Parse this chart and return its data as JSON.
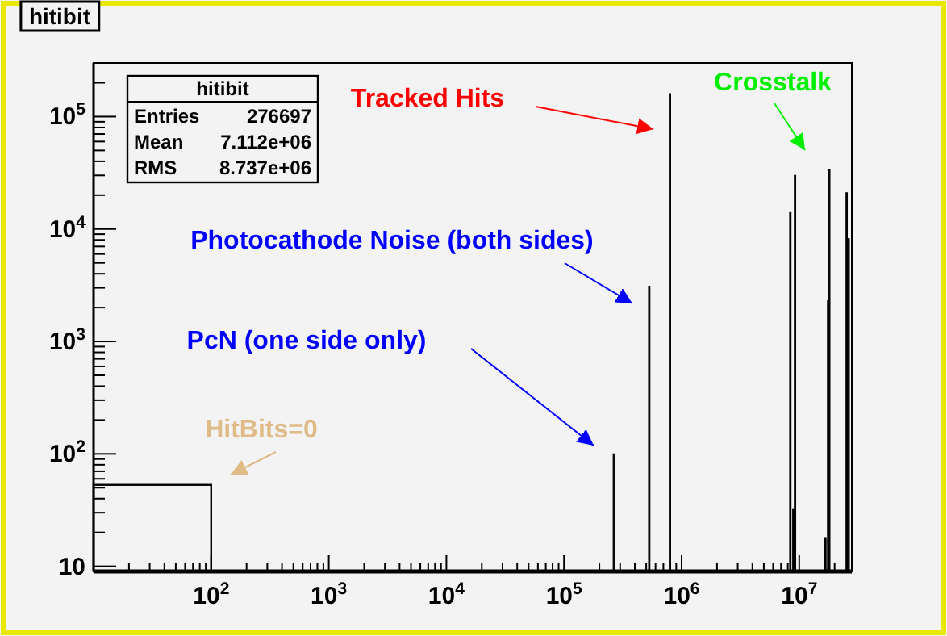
{
  "chart_data": {
    "type": "histogram",
    "title": "hitibit",
    "bins": [
      10,
      100,
      262000,
      267000,
      524000,
      534000,
      786000,
      802000,
      8300000,
      8450000,
      8800000,
      8950000,
      9100000,
      9250000,
      16500000,
      16800000,
      17400000,
      17700000,
      17800000,
      18100000,
      25000000,
      25400000,
      26000000,
      26400000
    ],
    "values": [
      53,
      null,
      100,
      null,
      3100,
      null,
      160000,
      null,
      14000,
      null,
      32,
      null,
      30000,
      null,
      18,
      null,
      2300,
      null,
      34000,
      null,
      21000,
      null,
      8200
    ],
    "color": "#000000",
    "log": "xy",
    "xlim": [
      10,
      28000000
    ],
    "ylim": [
      9,
      300000
    ],
    "xticks": [
      {
        "value": 20,
        "label": null
      },
      {
        "value": 30,
        "label": null
      },
      {
        "value": 40,
        "label": null
      },
      {
        "value": 50,
        "label": null
      },
      {
        "value": 60,
        "label": null
      },
      {
        "value": 70,
        "label": null
      },
      {
        "value": 80,
        "label": null
      },
      {
        "value": 90,
        "label": null
      },
      {
        "value": 100,
        "label": "10$^{2}$"
      },
      {
        "value": 200,
        "label": null
      },
      {
        "value": 300,
        "label": null
      },
      {
        "value": 400,
        "label": null
      },
      {
        "value": 500,
        "label": null
      },
      {
        "value": 600,
        "label": null
      },
      {
        "value": 700,
        "label": null
      },
      {
        "value": 800,
        "label": null
      },
      {
        "value": 900,
        "label": null
      },
      {
        "value": 1000,
        "label": "10$^{3}$"
      },
      {
        "value": 2000,
        "label": null
      },
      {
        "value": 3000,
        "label": null
      },
      {
        "value": 4000,
        "label": null
      },
      {
        "value": 5000,
        "label": null
      },
      {
        "value": 6000,
        "label": null
      },
      {
        "value": 7000,
        "label": null
      },
      {
        "value": 8000,
        "label": null
      },
      {
        "value": 9000,
        "label": null
      },
      {
        "value": 10000,
        "label": "10$^{4}$"
      },
      {
        "value": 20000,
        "label": null
      },
      {
        "value": 30000,
        "label": null
      },
      {
        "value": 40000,
        "label": null
      },
      {
        "value": 50000,
        "label": null
      },
      {
        "value": 60000,
        "label": null
      },
      {
        "value": 70000,
        "label": null
      },
      {
        "value": 80000,
        "label": null
      },
      {
        "value": 90000,
        "label": null
      },
      {
        "value": 100000,
        "label": "10$^{5}$"
      },
      {
        "value": 200000,
        "label": null
      },
      {
        "value": 300000,
        "label": null
      },
      {
        "value": 400000,
        "label": null
      },
      {
        "value": 500000,
        "label": null
      },
      {
        "value": 600000,
        "label": null
      },
      {
        "value": 700000,
        "label": null
      },
      {
        "value": 800000,
        "label": null
      },
      {
        "value": 900000,
        "label": null
      },
      {
        "value": 1000000,
        "label": "10$^{6}$"
      },
      {
        "value": 2000000,
        "label": null
      },
      {
        "value": 3000000,
        "label": null
      },
      {
        "value": 4000000,
        "label": null
      },
      {
        "value": 5000000,
        "label": null
      },
      {
        "value": 6000000,
        "label": null
      },
      {
        "value": 7000000,
        "label": null
      },
      {
        "value": 8000000,
        "label": null
      },
      {
        "value": 9000000,
        "label": null
      },
      {
        "value": 10000000,
        "label": "10$^{7}$"
      },
      {
        "value": 20000000,
        "label": null
      }
    ],
    "yticks": [
      {
        "value": 10,
        "label": "10"
      },
      {
        "value": 20,
        "label": null
      },
      {
        "value": 30,
        "label": null
      },
      {
        "value": 40,
        "label": null
      },
      {
        "value": 50,
        "label": null
      },
      {
        "value": 60,
        "label": null
      },
      {
        "value": 70,
        "label": null
      },
      {
        "value": 80,
        "label": null
      },
      {
        "value": 90,
        "label": null
      },
      {
        "value": 100,
        "label": "10$^{2}$"
      },
      {
        "value": 200,
        "label": null
      },
      {
        "value": 300,
        "label": null
      },
      {
        "value": 400,
        "label": null
      },
      {
        "value": 500,
        "label": null
      },
      {
        "value": 600,
        "label": null
      },
      {
        "value": 700,
        "label": null
      },
      {
        "value": 800,
        "label": null
      },
      {
        "value": 900,
        "label": null
      },
      {
        "value": 1000,
        "label": "10$^{3}$"
      },
      {
        "value": 2000,
        "label": null
      },
      {
        "value": 3000,
        "label": null
      },
      {
        "value": 4000,
        "label": null
      },
      {
        "value": 5000,
        "label": null
      },
      {
        "value": 6000,
        "label": null
      },
      {
        "value": 7000,
        "label": null
      },
      {
        "value": 8000,
        "label": null
      },
      {
        "value": 9000,
        "label": null
      },
      {
        "value": 10000,
        "label": "10$^{4}$"
      },
      {
        "value": 20000,
        "label": null
      },
      {
        "value": 30000,
        "label": null
      },
      {
        "value": 40000,
        "label": null
      },
      {
        "value": 50000,
        "label": null
      },
      {
        "value": 60000,
        "label": null
      },
      {
        "value": 70000,
        "label": null
      },
      {
        "value": 80000,
        "label": null
      },
      {
        "value": 90000,
        "label": null
      },
      {
        "value": 100000,
        "label": "10$^{5}$"
      },
      {
        "value": 200000,
        "label": null
      }
    ],
    "annotations": [
      "Entries 276697",
      "Mean 7.112e+06",
      "RMS 8.737e+06",
      "Tracked Hits",
      "Crosstalk",
      "Photocathode Noise (both sides)",
      "PcN (one side only)",
      "HitBits=0"
    ]
  }
}
